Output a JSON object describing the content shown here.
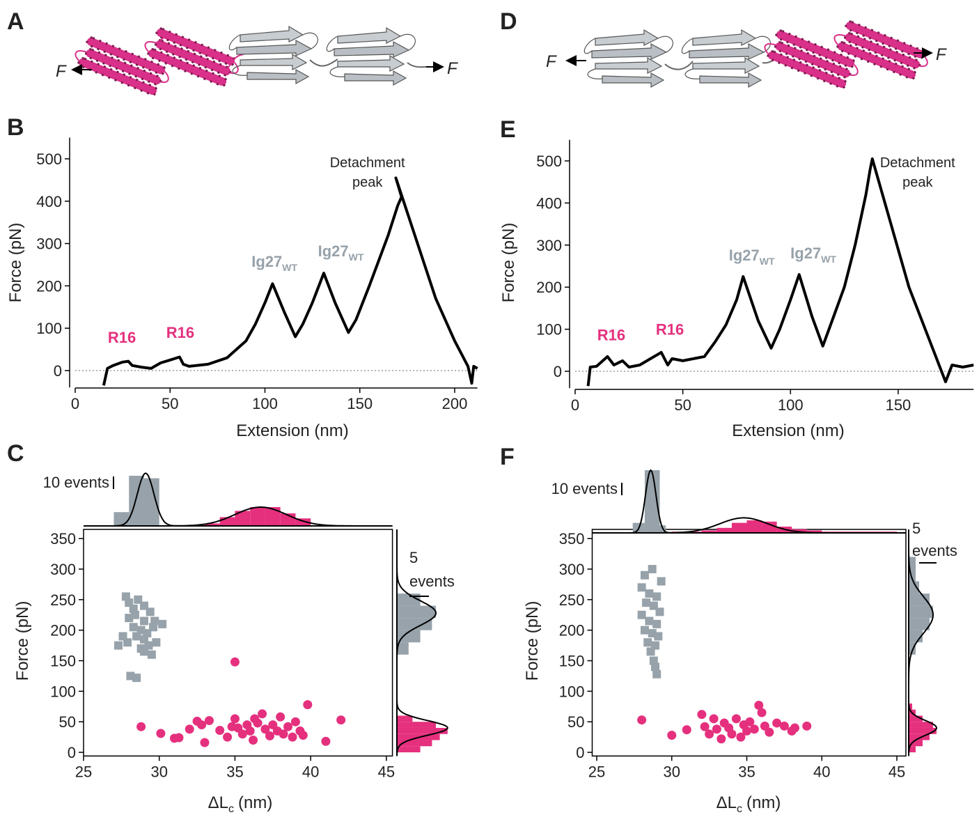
{
  "illustrations": [
    {
      "panel_label": "A",
      "force_left": "F",
      "force_right": "F"
    },
    {
      "panel_label": "D",
      "force_left": "F",
      "force_right": "F"
    }
  ],
  "chart_data": [
    {
      "type": "line",
      "panel_label": "B",
      "xlabel": "Extension (nm)",
      "ylabel": "Force (pN)",
      "xlim": [
        0,
        212
      ],
      "ylim": [
        -40,
        550
      ],
      "xticks": [
        0,
        50,
        100,
        150,
        200
      ],
      "yticks": [
        0,
        100,
        200,
        300,
        400,
        500
      ],
      "zero_line": true,
      "series": [
        {
          "color": "#000000",
          "x": [
            15,
            17,
            20,
            25,
            28,
            30,
            35,
            40,
            45,
            50,
            55,
            57,
            60,
            70,
            80,
            90,
            95,
            100,
            104,
            110,
            116,
            120,
            125,
            128,
            131,
            137,
            144,
            148,
            155,
            160,
            165,
            170,
            172,
            169,
            190,
            200,
            207,
            209,
            210,
            212
          ],
          "values": [
            -35,
            5,
            12,
            20,
            22,
            12,
            8,
            5,
            18,
            25,
            32,
            15,
            10,
            15,
            30,
            70,
            110,
            160,
            205,
            140,
            80,
            110,
            160,
            195,
            230,
            160,
            90,
            120,
            200,
            260,
            320,
            390,
            410,
            455,
            170,
            70,
            10,
            -30,
            10,
            5
          ]
        }
      ],
      "annotations": [
        {
          "text": "R16",
          "color": "#e5307e"
        },
        {
          "text": "R16",
          "color": "#e5307e"
        },
        {
          "text": "Ig27",
          "subscript": "WT",
          "color": "#97a2aa"
        },
        {
          "text": "Ig27",
          "subscript": "WT",
          "color": "#97a2aa"
        },
        {
          "lines": [
            "Detachment",
            "peak"
          ],
          "color": "#000000"
        }
      ]
    },
    {
      "type": "scatter",
      "panel_label": "C",
      "xlabel": {
        "main": "ΔL",
        "subscript": "c",
        "unit": "(nm)"
      },
      "ylabel": "Force (pN)",
      "xlim": [
        25,
        45.4
      ],
      "ylim": [
        -6,
        365
      ],
      "xticks": [
        25,
        30,
        35,
        40,
        45
      ],
      "yticks": [
        0,
        50,
        100,
        150,
        200,
        250,
        300,
        350
      ],
      "top_scale": {
        "label": "10 events",
        "value": 10
      },
      "right_scale": {
        "label_lines": [
          "5",
          "events"
        ],
        "value": 5
      },
      "series": [
        {
          "color": "#97a2aa",
          "marker": "square",
          "x": [
            27.8,
            28,
            28.3,
            28.6,
            29,
            29.4,
            29.7,
            30.2,
            28,
            28.3,
            28.8,
            29.2,
            29.6,
            27.6,
            27.3,
            27.9,
            28.5,
            29,
            29.3,
            29.8,
            29,
            29.5,
            28.8,
            28.1,
            28.5,
            29,
            28.4
          ],
          "values": [
            255,
            245,
            235,
            250,
            240,
            230,
            215,
            210,
            220,
            205,
            200,
            195,
            205,
            190,
            175,
            180,
            190,
            185,
            175,
            180,
            165,
            160,
            170,
            125,
            122,
            215,
            225
          ],
          "hist_x": {
            "bins": [
              27,
              28,
              29,
              30
            ],
            "counts": [
              11,
              40,
              38
            ],
            "fit": {
              "mean": 29.1,
              "sd": 0.55,
              "peak": 42
            }
          },
          "hist_y": {
            "bins": [
              160,
              180,
              200,
              220,
              240,
              260
            ],
            "counts": [
              3,
              6,
              9,
              10,
              6
            ],
            "fit": {
              "mean": 228,
              "sd": 20,
              "peak": 10
            }
          }
        },
        {
          "color": "#e5307e",
          "marker": "circle",
          "x": [
            35,
            39.8,
            42,
            28.8,
            30.1,
            31,
            31.3,
            32,
            32.5,
            32.8,
            33,
            33.3,
            34,
            34.5,
            35,
            35.2,
            35.5,
            35.8,
            36,
            36.2,
            36.5,
            36.8,
            37,
            37.3,
            37.5,
            37.8,
            38,
            38.2,
            38.5,
            38.8,
            39,
            39.3,
            39.5,
            41,
            36.3,
            34.8
          ],
          "values": [
            148,
            78,
            53,
            42,
            31,
            23,
            24,
            38,
            51,
            45,
            16,
            52,
            36,
            25,
            55,
            40,
            30,
            45,
            35,
            20,
            48,
            63,
            38,
            27,
            45,
            35,
            58,
            30,
            42,
            25,
            50,
            35,
            28,
            18,
            55,
            42
          ],
          "hist_x": {
            "bins": [
              33,
              34,
              35,
              36,
              37,
              38,
              39,
              40
            ],
            "counts": [
              2,
              7,
              12,
              15,
              15,
              10,
              6
            ],
            "fit": {
              "mean": 36.7,
              "sd": 1.7,
              "peak": 15
            }
          },
          "hist_y": {
            "bins": [
              0,
              10,
              20,
              30,
              40,
              50,
              60
            ],
            "counts": [
              6,
              9,
              11,
              13,
              10,
              4
            ],
            "fit": {
              "mean": 40,
              "sd": 12,
              "peak": 13
            }
          }
        }
      ]
    },
    {
      "type": "line",
      "panel_label": "E",
      "xlabel": "Extension (nm)",
      "ylabel": "Force (pN)",
      "xlim": [
        0,
        185
      ],
      "ylim": [
        -40,
        550
      ],
      "xticks": [
        0,
        50,
        100,
        150
      ],
      "yticks": [
        0,
        100,
        200,
        300,
        400,
        500
      ],
      "zero_line": true,
      "series": [
        {
          "color": "#000000",
          "x": [
            6,
            7,
            10,
            15,
            18,
            22,
            25,
            30,
            35,
            40,
            43,
            45,
            50,
            55,
            60,
            65,
            70,
            75,
            78,
            85,
            91,
            95,
            100,
            104,
            110,
            115,
            120,
            125,
            130,
            135,
            137,
            138,
            155,
            172,
            175,
            180,
            185
          ],
          "values": [
            -35,
            10,
            12,
            35,
            15,
            25,
            10,
            15,
            30,
            45,
            15,
            30,
            25,
            30,
            35,
            70,
            110,
            170,
            225,
            120,
            55,
            100,
            170,
            230,
            130,
            60,
            130,
            200,
            300,
            420,
            480,
            505,
            200,
            -25,
            15,
            10,
            15
          ]
        }
      ],
      "annotations": [
        {
          "text": "R16",
          "color": "#e5307e"
        },
        {
          "text": "R16",
          "color": "#e5307e"
        },
        {
          "text": "Ig27",
          "subscript": "WT",
          "color": "#97a2aa"
        },
        {
          "text": "Ig27",
          "subscript": "WT",
          "color": "#97a2aa"
        },
        {
          "lines": [
            "Detachment",
            "peak"
          ],
          "color": "#000000"
        }
      ]
    },
    {
      "type": "scatter",
      "panel_label": "F",
      "xlabel": {
        "main": "ΔL",
        "subscript": "c",
        "unit": "(nm)"
      },
      "ylabel": "Force (pN)",
      "xlim": [
        24.7,
        45.6
      ],
      "ylim": [
        -6,
        365
      ],
      "xticks": [
        25,
        30,
        35,
        40,
        45
      ],
      "yticks": [
        0,
        50,
        100,
        150,
        200,
        250,
        300,
        350
      ],
      "top_scale": {
        "label": "10 events",
        "value": 10
      },
      "right_scale": {
        "label_lines": [
          "5",
          "events"
        ],
        "value": 5
      },
      "series": [
        {
          "color": "#97a2aa",
          "marker": "square",
          "x": [
            28.2,
            28.7,
            29.3,
            28,
            28.5,
            29,
            28.3,
            28.8,
            29.2,
            28,
            28.5,
            29,
            28.2,
            28.7,
            29.1,
            28.4,
            28.9,
            28.6,
            28.8,
            28.9,
            29
          ],
          "values": [
            290,
            300,
            280,
            270,
            260,
            255,
            245,
            240,
            230,
            225,
            215,
            210,
            200,
            195,
            190,
            180,
            175,
            165,
            150,
            140,
            128
          ],
          "hist_x": {
            "bins": [
              27.4,
              28.2,
              29.2,
              29.6
            ],
            "counts": [
              8,
              50,
              6
            ],
            "fit": {
              "mean": 28.6,
              "sd": 0.35,
              "peak": 50
            }
          },
          "hist_y": {
            "bins": [
              160,
              180,
              200,
              220,
              240,
              260,
              280,
              300,
              320
            ],
            "counts": [
              2,
              4,
              6,
              7,
              6,
              3,
              2,
              2
            ],
            "fit": {
              "mean": 225,
              "sd": 30,
              "peak": 7
            }
          }
        },
        {
          "color": "#e5307e",
          "marker": "circle",
          "x": [
            28,
            30,
            31,
            32,
            32.2,
            32.5,
            32.8,
            33,
            33.3,
            33.5,
            33.8,
            34,
            34.3,
            34.6,
            34.8,
            35,
            35.2,
            35.5,
            35.8,
            36,
            36.2,
            36.5,
            37,
            37.5,
            38,
            38.2,
            39
          ],
          "values": [
            53,
            28,
            37,
            62,
            42,
            30,
            55,
            38,
            22,
            48,
            40,
            30,
            55,
            25,
            45,
            35,
            50,
            38,
            77,
            65,
            43,
            33,
            48,
            43,
            35,
            40,
            43
          ],
          "hist_x": {
            "bins": [
              30,
              31,
              32,
              33,
              34,
              35,
              36,
              37,
              38,
              39,
              40,
              42,
              45
            ],
            "counts": [
              1,
              1,
              2,
              4,
              8,
              10,
              9,
              5,
              3,
              2,
              1,
              1
            ],
            "fit": {
              "mean": 34.8,
              "sd": 1.6,
              "peak": 12
            }
          },
          "hist_y": {
            "bins": [
              0,
              10,
              20,
              30,
              40,
              50,
              60,
              70,
              80
            ],
            "counts": [
              2,
              4,
              6,
              8,
              7,
              4,
              2,
              1
            ],
            "fit": {
              "mean": 40,
              "sd": 12,
              "peak": 8
            }
          }
        }
      ]
    }
  ]
}
